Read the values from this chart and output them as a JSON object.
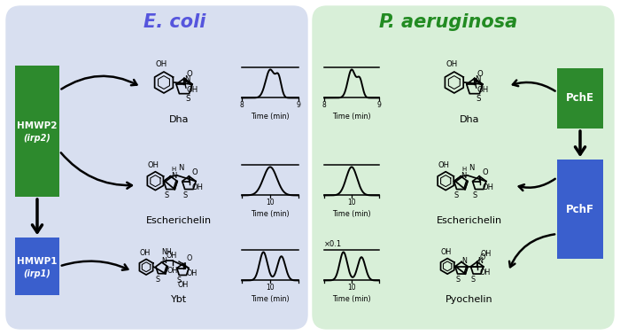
{
  "left_panel_bg": "#d8dff0",
  "right_panel_bg": "#d8efd8",
  "left_title": "E. coli",
  "right_title": "P. aeruginosa",
  "left_title_color": "#5555dd",
  "right_title_color": "#228B22",
  "green_box_color": "#2d8a2d",
  "blue_box_color": "#3a5fcd",
  "hmwp2_line1": "HMWP2",
  "hmwp2_line2": "(irp2)",
  "hmwp1_line1": "HMWP1",
  "hmwp1_line2": "(irp1)",
  "pche_label": "PchE",
  "pchf_label": "PchF",
  "dha_label": "Dha",
  "escherichelin_label": "Escherichelin",
  "ybt_label": "Ybt",
  "pyochelin_label": "Pyochelin",
  "x01_label": "×0.1",
  "time_label": "Time (min)"
}
